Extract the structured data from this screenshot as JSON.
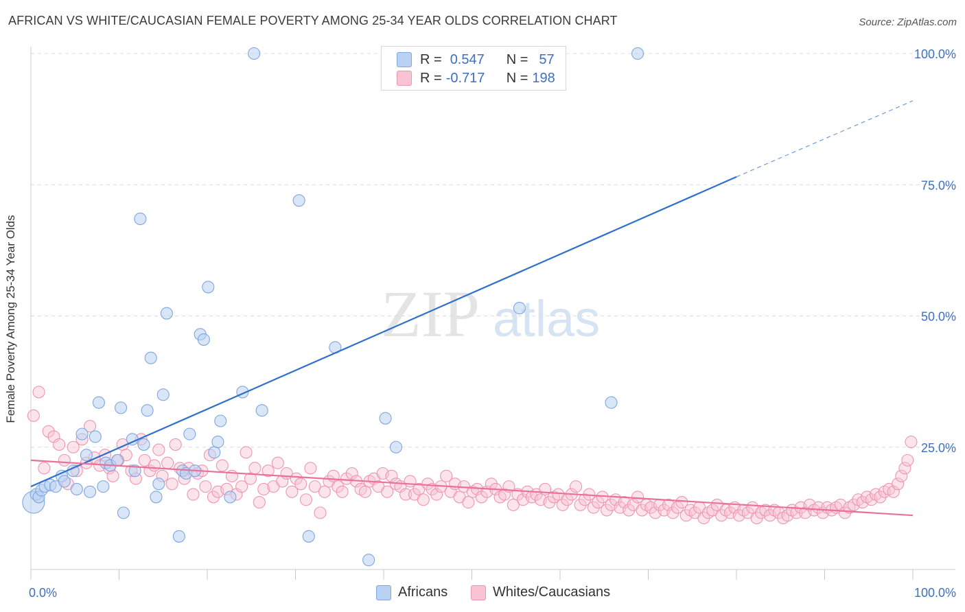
{
  "title": "AFRICAN VS WHITE/CAUCASIAN FEMALE POVERTY AMONG 25-34 YEAR OLDS CORRELATION CHART",
  "source_prefix": "Source: ",
  "source_site": "ZipAtlas.com",
  "watermark": {
    "zip": "ZIP",
    "atlas": "atlas"
  },
  "stats": {
    "africans": {
      "r_label": "R =",
      "r": "0.547",
      "n_label": "N =",
      "n": "57"
    },
    "whites": {
      "r_label": "R =",
      "r": "-0.717",
      "n_label": "N =",
      "n": "198"
    }
  },
  "legend": {
    "africans": "Africans",
    "whites": "Whites/Caucasians"
  },
  "colors": {
    "africans_fill": "#b9d1f2",
    "africans_stroke": "#7ea6e0",
    "africans_line": "#2f6fcc",
    "whites_fill": "#f8c3d3",
    "whites_stroke": "#ee95b3",
    "whites_line": "#e8709a",
    "tick_text": "#3d6fc4",
    "grid": "#dcdcdc"
  },
  "chart_data": {
    "type": "scatter",
    "title": "AFRICAN VS WHITE/CAUCASIAN FEMALE POVERTY AMONG 25-34 YEAR OLDS CORRELATION CHART",
    "xlabel": "",
    "ylabel": "Female Poverty Among 25-34 Year Olds",
    "xlim": [
      0,
      100
    ],
    "ylim": [
      0,
      105
    ],
    "x_tick_labels": [
      "0.0%",
      "100.0%"
    ],
    "y_ticks": [
      25,
      50,
      75,
      100
    ],
    "y_tick_labels": [
      "25.0%",
      "50.0%",
      "75.0%",
      "100.0%"
    ],
    "grid": true,
    "legend_position": "bottom",
    "series": [
      {
        "name": "Africans",
        "r": 0.547,
        "n": 57,
        "trend": {
          "x0": 0,
          "y0": 17.5,
          "x1": 80,
          "y1": 76.5,
          "dashed_to_x": 100,
          "dashed_to_y": 91
        },
        "points": [
          [
            0.3,
            14.5
          ],
          [
            0.6,
            16
          ],
          [
            0.9,
            15.5
          ],
          [
            1.2,
            16.8
          ],
          [
            1.6,
            17.5
          ],
          [
            2.2,
            17.8
          ],
          [
            2.8,
            17.5
          ],
          [
            3.5,
            19.5
          ],
          [
            3.8,
            18.5
          ],
          [
            4.8,
            20.5
          ],
          [
            5.2,
            17
          ],
          [
            5.8,
            27.5
          ],
          [
            6.3,
            23.5
          ],
          [
            6.7,
            16.5
          ],
          [
            7.3,
            27
          ],
          [
            7.7,
            33.5
          ],
          [
            8.2,
            17.5
          ],
          [
            8.5,
            22
          ],
          [
            9.0,
            21.5
          ],
          [
            9.8,
            22.5
          ],
          [
            10.2,
            32.5
          ],
          [
            10.5,
            12.5
          ],
          [
            11.5,
            26.5
          ],
          [
            11.8,
            20.5
          ],
          [
            12.4,
            68.5
          ],
          [
            12.8,
            25.5
          ],
          [
            13.2,
            32
          ],
          [
            13.6,
            42
          ],
          [
            14.2,
            15.5
          ],
          [
            14.5,
            18
          ],
          [
            15.0,
            35
          ],
          [
            15.4,
            50.5
          ],
          [
            16.8,
            8
          ],
          [
            17.2,
            20.5
          ],
          [
            17.6,
            20
          ],
          [
            18.0,
            27.5
          ],
          [
            18.6,
            20.5
          ],
          [
            19.2,
            46.5
          ],
          [
            19.6,
            45.5
          ],
          [
            20.1,
            55.5
          ],
          [
            20.8,
            24
          ],
          [
            21.2,
            26
          ],
          [
            21.5,
            30
          ],
          [
            22.6,
            15.5
          ],
          [
            24.0,
            35.5
          ],
          [
            25.3,
            100
          ],
          [
            26.2,
            32
          ],
          [
            30.4,
            72
          ],
          [
            31.5,
            8
          ],
          [
            34.5,
            44
          ],
          [
            38.3,
            3.5
          ],
          [
            40.2,
            30.5
          ],
          [
            41.4,
            25
          ],
          [
            55.4,
            51.5
          ],
          [
            58.2,
            100
          ],
          [
            65.8,
            33.5
          ],
          [
            68.8,
            100
          ]
        ]
      },
      {
        "name": "Whites/Caucasians",
        "r": -0.717,
        "n": 198,
        "trend": {
          "x0": 0,
          "y0": 22.5,
          "x1": 100,
          "y1": 12
        },
        "points": [
          [
            0.3,
            31
          ],
          [
            0.9,
            35.5
          ],
          [
            1.5,
            21
          ],
          [
            2.0,
            28
          ],
          [
            2.6,
            27
          ],
          [
            3.2,
            25.5
          ],
          [
            3.8,
            22.5
          ],
          [
            4.2,
            18
          ],
          [
            4.8,
            25
          ],
          [
            5.2,
            20.5
          ],
          [
            5.8,
            26.5
          ],
          [
            6.3,
            22
          ],
          [
            6.7,
            29
          ],
          [
            7.2,
            23
          ],
          [
            7.8,
            21.5
          ],
          [
            8.4,
            23.5
          ],
          [
            8.9,
            21
          ],
          [
            9.3,
            19.5
          ],
          [
            9.9,
            22.5
          ],
          [
            10.4,
            25.5
          ],
          [
            10.8,
            23.5
          ],
          [
            11.4,
            20.5
          ],
          [
            11.9,
            19
          ],
          [
            12.5,
            26.5
          ],
          [
            12.9,
            22.5
          ],
          [
            13.5,
            20.5
          ],
          [
            14.0,
            21.5
          ],
          [
            14.5,
            24.5
          ],
          [
            14.9,
            19.5
          ],
          [
            15.5,
            22
          ],
          [
            16.0,
            18
          ],
          [
            16.4,
            25.5
          ],
          [
            16.9,
            21
          ],
          [
            17.4,
            19
          ],
          [
            17.9,
            21
          ],
          [
            18.4,
            16
          ],
          [
            18.9,
            20
          ],
          [
            19.4,
            20.5
          ],
          [
            19.8,
            17.5
          ],
          [
            20.3,
            23.5
          ],
          [
            20.7,
            15.5
          ],
          [
            21.2,
            16.5
          ],
          [
            21.7,
            21.5
          ],
          [
            22.2,
            17
          ],
          [
            22.8,
            19.5
          ],
          [
            23.3,
            16
          ],
          [
            23.9,
            17.5
          ],
          [
            24.4,
            24
          ],
          [
            24.9,
            19
          ],
          [
            25.4,
            21
          ],
          [
            25.9,
            14.5
          ],
          [
            26.4,
            17
          ],
          [
            26.9,
            20.5
          ],
          [
            27.5,
            17.5
          ],
          [
            28.0,
            22
          ],
          [
            28.5,
            18.5
          ],
          [
            29.0,
            20
          ],
          [
            29.6,
            16.5
          ],
          [
            30.1,
            19
          ],
          [
            30.6,
            18
          ],
          [
            31.2,
            15
          ],
          [
            31.7,
            21
          ],
          [
            32.2,
            17.5
          ],
          [
            32.8,
            12.5
          ],
          [
            33.3,
            16.5
          ],
          [
            33.8,
            18.5
          ],
          [
            34.3,
            19.5
          ],
          [
            34.8,
            17.5
          ],
          [
            35.3,
            16.5
          ],
          [
            35.8,
            19
          ],
          [
            36.4,
            20
          ],
          [
            36.9,
            18.5
          ],
          [
            37.4,
            17
          ],
          [
            37.9,
            16.5
          ],
          [
            38.4,
            18.5
          ],
          [
            38.9,
            19
          ],
          [
            39.4,
            17.5
          ],
          [
            39.9,
            20
          ],
          [
            40.4,
            16.5
          ],
          [
            40.9,
            19.5
          ],
          [
            41.4,
            18
          ],
          [
            41.9,
            17.5
          ],
          [
            42.5,
            16
          ],
          [
            43.0,
            18.5
          ],
          [
            43.5,
            16
          ],
          [
            44.0,
            17
          ],
          [
            44.5,
            15
          ],
          [
            45.0,
            18
          ],
          [
            45.5,
            17
          ],
          [
            46.0,
            16
          ],
          [
            46.5,
            17.5
          ],
          [
            47.1,
            19.5
          ],
          [
            47.6,
            16.5
          ],
          [
            48.1,
            18
          ],
          [
            48.6,
            15.5
          ],
          [
            49.1,
            17.5
          ],
          [
            49.6,
            14.5
          ],
          [
            50.1,
            16.5
          ],
          [
            50.6,
            17
          ],
          [
            51.1,
            15.5
          ],
          [
            51.7,
            16.5
          ],
          [
            52.2,
            18
          ],
          [
            52.7,
            17
          ],
          [
            53.2,
            15.5
          ],
          [
            53.7,
            16
          ],
          [
            54.2,
            17.5
          ],
          [
            54.7,
            14
          ],
          [
            55.2,
            16
          ],
          [
            55.8,
            15
          ],
          [
            56.3,
            16.5
          ],
          [
            56.8,
            15.5
          ],
          [
            57.3,
            16
          ],
          [
            57.8,
            15
          ],
          [
            58.3,
            17
          ],
          [
            58.8,
            14.5
          ],
          [
            59.3,
            15.5
          ],
          [
            59.8,
            16
          ],
          [
            60.3,
            14
          ],
          [
            60.8,
            15
          ],
          [
            61.3,
            16
          ],
          [
            61.8,
            17.5
          ],
          [
            62.3,
            14
          ],
          [
            62.8,
            15
          ],
          [
            63.3,
            16
          ],
          [
            63.8,
            13.5
          ],
          [
            64.3,
            14.5
          ],
          [
            64.8,
            15.5
          ],
          [
            65.3,
            13
          ],
          [
            65.8,
            14
          ],
          [
            66.3,
            15
          ],
          [
            66.8,
            13.5
          ],
          [
            67.3,
            14.5
          ],
          [
            67.8,
            13
          ],
          [
            68.3,
            14
          ],
          [
            68.8,
            15.5
          ],
          [
            69.3,
            13
          ],
          [
            69.8,
            14
          ],
          [
            70.3,
            13.5
          ],
          [
            70.8,
            12.5
          ],
          [
            71.3,
            14
          ],
          [
            71.8,
            13
          ],
          [
            72.3,
            14
          ],
          [
            72.8,
            12.5
          ],
          [
            73.3,
            13.5
          ],
          [
            73.8,
            14.5
          ],
          [
            74.3,
            12
          ],
          [
            74.8,
            13
          ],
          [
            75.3,
            12.5
          ],
          [
            75.8,
            13.5
          ],
          [
            76.3,
            11.5
          ],
          [
            76.8,
            12.5
          ],
          [
            77.3,
            13
          ],
          [
            77.8,
            14
          ],
          [
            78.3,
            12
          ],
          [
            78.8,
            13
          ],
          [
            79.3,
            12.5
          ],
          [
            79.8,
            13.5
          ],
          [
            80.3,
            12
          ],
          [
            80.8,
            13
          ],
          [
            81.3,
            12.5
          ],
          [
            81.8,
            13.5
          ],
          [
            82.3,
            11.5
          ],
          [
            82.8,
            12.5
          ],
          [
            83.3,
            13
          ],
          [
            83.8,
            12
          ],
          [
            84.3,
            13
          ],
          [
            84.8,
            12.5
          ],
          [
            85.3,
            11.5
          ],
          [
            85.8,
            12
          ],
          [
            86.3,
            13
          ],
          [
            86.8,
            12.5
          ],
          [
            87.3,
            13.5
          ],
          [
            87.8,
            12.5
          ],
          [
            88.3,
            14
          ],
          [
            88.8,
            13
          ],
          [
            89.3,
            13.5
          ],
          [
            89.8,
            12.5
          ],
          [
            90.3,
            13.5
          ],
          [
            90.8,
            13
          ],
          [
            91.3,
            13.5
          ],
          [
            91.8,
            14
          ],
          [
            92.3,
            12.5
          ],
          [
            92.8,
            13.5
          ],
          [
            93.3,
            14
          ],
          [
            93.8,
            15
          ],
          [
            94.3,
            14.5
          ],
          [
            94.8,
            15.5
          ],
          [
            95.3,
            15
          ],
          [
            95.8,
            16
          ],
          [
            96.3,
            15.5
          ],
          [
            96.8,
            16.5
          ],
          [
            97.3,
            17
          ],
          [
            97.8,
            16.5
          ],
          [
            98.3,
            18
          ],
          [
            98.7,
            19.5
          ],
          [
            99.1,
            21
          ],
          [
            99.4,
            22.5
          ],
          [
            99.8,
            26
          ]
        ]
      }
    ]
  }
}
